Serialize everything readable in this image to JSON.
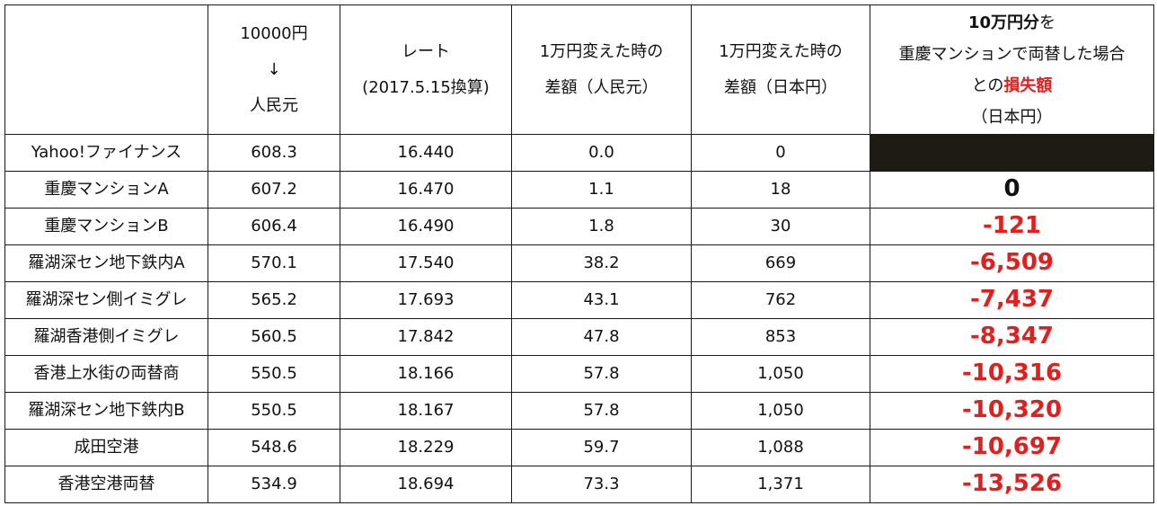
{
  "header": {
    "col1": "",
    "col2": [
      "10000円",
      "↓",
      "人民元"
    ],
    "col3": [
      "レート",
      "(2017.5.15換算)"
    ],
    "col4": [
      "1万円変えた時の",
      "差額（人民元）"
    ],
    "col5": [
      "1万円変えた時の",
      "差額（日本円）"
    ],
    "col6": {
      "line1_bold": "10万円分",
      "line1_rest": "を",
      "line2": "重慶マンションで両替した場合",
      "line3_pre": "との",
      "line3_red": "損失額",
      "line4": "（日本円）"
    }
  },
  "rows": [
    {
      "name": "Yahoo!ファイナンス",
      "cny": "608.3",
      "rate": "16.440",
      "diff_cny": "0.0",
      "diff_jpy": "0",
      "loss": ""
    },
    {
      "name": "重慶マンションA",
      "cny": "607.2",
      "rate": "16.470",
      "diff_cny": "1.1",
      "diff_jpy": "18",
      "loss": "0"
    },
    {
      "name": "重慶マンションB",
      "cny": "606.4",
      "rate": "16.490",
      "diff_cny": "1.8",
      "diff_jpy": "30",
      "loss": "-121"
    },
    {
      "name": "羅湖深セン地下鉄内A",
      "cny": "570.1",
      "rate": "17.540",
      "diff_cny": "38.2",
      "diff_jpy": "669",
      "loss": "-6,509"
    },
    {
      "name": "羅湖深セン側イミグレ",
      "cny": "565.2",
      "rate": "17.693",
      "diff_cny": "43.1",
      "diff_jpy": "762",
      "loss": "-7,437"
    },
    {
      "name": "羅湖香港側イミグレ",
      "cny": "560.5",
      "rate": "17.842",
      "diff_cny": "47.8",
      "diff_jpy": "853",
      "loss": "-8,347"
    },
    {
      "name": "香港上水街の両替商",
      "cny": "550.5",
      "rate": "18.166",
      "diff_cny": "57.8",
      "diff_jpy": "1,050",
      "loss": "-10,316"
    },
    {
      "name": "羅湖深セン地下鉄内B",
      "cny": "550.5",
      "rate": "18.167",
      "diff_cny": "57.8",
      "diff_jpy": "1,050",
      "loss": "-10,320"
    },
    {
      "name": "成田空港",
      "cny": "548.6",
      "rate": "18.229",
      "diff_cny": "59.7",
      "diff_jpy": "1,088",
      "loss": "-10,697"
    },
    {
      "name": "香港空港両替",
      "cny": "534.9",
      "rate": "18.694",
      "diff_cny": "73.3",
      "diff_jpy": "1,371",
      "loss": "-13,526"
    }
  ],
  "colors": {
    "loss_red": "#e0201e",
    "blackout_cell": "#1e1a14",
    "border": "#1a1a1a"
  }
}
